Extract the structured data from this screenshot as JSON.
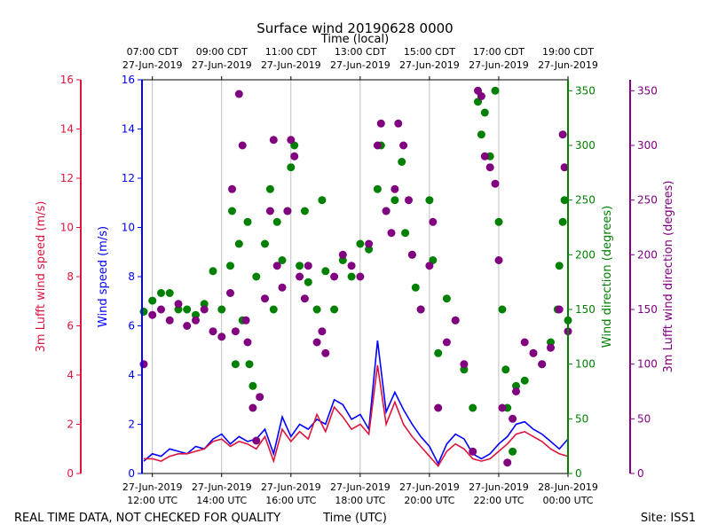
{
  "chart_data": {
    "type": "scatter",
    "title": "Surface wind 20190628 0000",
    "top_axis_label": "Time (local)",
    "xlabel": "Time (UTC)",
    "x_range_utc_hours": [
      11.7,
      24.0
    ],
    "bottom_ticks": [
      {
        "t": 12,
        "line1": "27-Jun-2019",
        "line2": "12:00 UTC"
      },
      {
        "t": 14,
        "line1": "27-Jun-2019",
        "line2": "14:00 UTC"
      },
      {
        "t": 16,
        "line1": "27-Jun-2019",
        "line2": "16:00 UTC"
      },
      {
        "t": 18,
        "line1": "27-Jun-2019",
        "line2": "18:00 UTC"
      },
      {
        "t": 20,
        "line1": "27-Jun-2019",
        "line2": "20:00 UTC"
      },
      {
        "t": 22,
        "line1": "27-Jun-2019",
        "line2": "22:00 UTC"
      },
      {
        "t": 24,
        "line1": "28-Jun-2019",
        "line2": "00:00 UTC"
      }
    ],
    "top_ticks": [
      {
        "t": 12,
        "line1": "07:00 CDT",
        "line2": "27-Jun-2019"
      },
      {
        "t": 14,
        "line1": "09:00 CDT",
        "line2": "27-Jun-2019"
      },
      {
        "t": 16,
        "line1": "11:00 CDT",
        "line2": "27-Jun-2019"
      },
      {
        "t": 18,
        "line1": "13:00 CDT",
        "line2": "27-Jun-2019"
      },
      {
        "t": 20,
        "line1": "15:00 CDT",
        "line2": "27-Jun-2019"
      },
      {
        "t": 22,
        "line1": "17:00 CDT",
        "line2": "27-Jun-2019"
      },
      {
        "t": 24,
        "line1": "19:00 CDT",
        "line2": "27-Jun-2019"
      }
    ],
    "y_axes": {
      "lufft_speed": {
        "label": "3m Lufft wind speed (m/s)",
        "range": [
          0,
          16
        ],
        "ticks": [
          0,
          2,
          4,
          6,
          8,
          10,
          12,
          14,
          16
        ],
        "color": "#dc143c"
      },
      "speed": {
        "label": "Wind speed (m/s)",
        "range": [
          0,
          16
        ],
        "ticks": [
          0,
          2,
          4,
          6,
          8,
          10,
          12,
          14,
          16
        ],
        "color": "#0000ff"
      },
      "direction": {
        "label": "Wind direction (degrees)",
        "range": [
          0,
          360
        ],
        "ticks": [
          0,
          50,
          100,
          150,
          200,
          250,
          300,
          350
        ],
        "color": "#008000"
      },
      "lufft_direction": {
        "label": "3m Lufft wind direction (degrees)",
        "range": [
          0,
          360
        ],
        "ticks": [
          0,
          50,
          100,
          150,
          200,
          250,
          300,
          350
        ],
        "color": "#800080"
      }
    },
    "series": [
      {
        "name": "Wind speed (m/s)",
        "axis": "speed",
        "style": "line",
        "color": "#0000ff",
        "points": [
          [
            11.75,
            0.5
          ],
          [
            12.0,
            0.8
          ],
          [
            12.25,
            0.7
          ],
          [
            12.5,
            1.0
          ],
          [
            12.75,
            0.9
          ],
          [
            13.0,
            0.8
          ],
          [
            13.25,
            1.1
          ],
          [
            13.5,
            1.0
          ],
          [
            13.75,
            1.4
          ],
          [
            14.0,
            1.6
          ],
          [
            14.25,
            1.2
          ],
          [
            14.5,
            1.5
          ],
          [
            14.75,
            1.3
          ],
          [
            15.0,
            1.4
          ],
          [
            15.25,
            1.8
          ],
          [
            15.5,
            0.8
          ],
          [
            15.75,
            2.3
          ],
          [
            16.0,
            1.5
          ],
          [
            16.25,
            2.0
          ],
          [
            16.5,
            1.8
          ],
          [
            16.75,
            2.2
          ],
          [
            17.0,
            2.0
          ],
          [
            17.25,
            3.0
          ],
          [
            17.5,
            2.8
          ],
          [
            17.75,
            2.2
          ],
          [
            18.0,
            2.4
          ],
          [
            18.25,
            1.8
          ],
          [
            18.5,
            5.4
          ],
          [
            18.75,
            2.5
          ],
          [
            19.0,
            3.3
          ],
          [
            19.25,
            2.6
          ],
          [
            19.5,
            2.0
          ],
          [
            19.75,
            1.5
          ],
          [
            20.0,
            1.1
          ],
          [
            20.25,
            0.4
          ],
          [
            20.5,
            1.2
          ],
          [
            20.75,
            1.6
          ],
          [
            21.0,
            1.4
          ],
          [
            21.25,
            0.8
          ],
          [
            21.5,
            0.6
          ],
          [
            21.75,
            0.8
          ],
          [
            22.0,
            1.2
          ],
          [
            22.25,
            1.5
          ],
          [
            22.5,
            2.0
          ],
          [
            22.75,
            2.1
          ],
          [
            23.0,
            1.8
          ],
          [
            23.25,
            1.6
          ],
          [
            23.5,
            1.3
          ],
          [
            23.75,
            1.0
          ],
          [
            24.0,
            1.4
          ]
        ]
      },
      {
        "name": "3m Lufft wind speed (m/s)",
        "axis": "lufft_speed",
        "style": "line",
        "color": "#dc143c",
        "points": [
          [
            11.75,
            0.6
          ],
          [
            12.0,
            0.6
          ],
          [
            12.25,
            0.5
          ],
          [
            12.5,
            0.7
          ],
          [
            12.75,
            0.8
          ],
          [
            13.0,
            0.8
          ],
          [
            13.25,
            0.9
          ],
          [
            13.5,
            1.0
          ],
          [
            13.75,
            1.3
          ],
          [
            14.0,
            1.4
          ],
          [
            14.25,
            1.1
          ],
          [
            14.5,
            1.3
          ],
          [
            14.75,
            1.2
          ],
          [
            15.0,
            1.0
          ],
          [
            15.25,
            1.5
          ],
          [
            15.5,
            0.5
          ],
          [
            15.75,
            1.8
          ],
          [
            16.0,
            1.3
          ],
          [
            16.25,
            1.7
          ],
          [
            16.5,
            1.4
          ],
          [
            16.75,
            2.4
          ],
          [
            17.0,
            1.7
          ],
          [
            17.25,
            2.7
          ],
          [
            17.5,
            2.3
          ],
          [
            17.75,
            1.8
          ],
          [
            18.0,
            2.0
          ],
          [
            18.25,
            1.6
          ],
          [
            18.5,
            4.4
          ],
          [
            18.75,
            2.0
          ],
          [
            19.0,
            2.9
          ],
          [
            19.25,
            2.0
          ],
          [
            19.5,
            1.5
          ],
          [
            19.75,
            1.1
          ],
          [
            20.0,
            0.7
          ],
          [
            20.25,
            0.3
          ],
          [
            20.5,
            0.9
          ],
          [
            20.75,
            1.2
          ],
          [
            21.0,
            1.0
          ],
          [
            21.25,
            0.6
          ],
          [
            21.5,
            0.5
          ],
          [
            21.75,
            0.6
          ],
          [
            22.0,
            0.9
          ],
          [
            22.25,
            1.2
          ],
          [
            22.5,
            1.6
          ],
          [
            22.75,
            1.7
          ],
          [
            23.0,
            1.5
          ],
          [
            23.25,
            1.3
          ],
          [
            23.5,
            1.0
          ],
          [
            23.75,
            0.8
          ],
          [
            24.0,
            0.7
          ]
        ]
      },
      {
        "name": "Wind direction (degrees)",
        "axis": "direction",
        "style": "scatter",
        "color": "#008000",
        "points": [
          [
            11.75,
            148
          ],
          [
            12.0,
            158
          ],
          [
            12.25,
            165
          ],
          [
            12.5,
            165
          ],
          [
            12.75,
            150
          ],
          [
            13.0,
            150
          ],
          [
            13.25,
            145
          ],
          [
            13.5,
            155
          ],
          [
            13.75,
            185
          ],
          [
            14.0,
            150
          ],
          [
            14.25,
            190
          ],
          [
            14.3,
            240
          ],
          [
            14.4,
            100
          ],
          [
            14.5,
            210
          ],
          [
            14.6,
            140
          ],
          [
            14.75,
            230
          ],
          [
            14.8,
            100
          ],
          [
            14.9,
            80
          ],
          [
            15.0,
            180
          ],
          [
            15.25,
            210
          ],
          [
            15.4,
            260
          ],
          [
            15.5,
            150
          ],
          [
            15.6,
            230
          ],
          [
            15.75,
            195
          ],
          [
            15.9,
            240
          ],
          [
            16.0,
            280
          ],
          [
            16.1,
            300
          ],
          [
            16.25,
            190
          ],
          [
            16.4,
            240
          ],
          [
            16.5,
            175
          ],
          [
            16.75,
            150
          ],
          [
            16.9,
            250
          ],
          [
            17.0,
            185
          ],
          [
            17.25,
            150
          ],
          [
            17.5,
            195
          ],
          [
            17.75,
            180
          ],
          [
            18.0,
            210
          ],
          [
            18.25,
            205
          ],
          [
            18.5,
            260
          ],
          [
            18.6,
            300
          ],
          [
            18.75,
            240
          ],
          [
            19.0,
            250
          ],
          [
            19.2,
            285
          ],
          [
            19.3,
            220
          ],
          [
            19.5,
            200
          ],
          [
            19.6,
            170
          ],
          [
            19.75,
            150
          ],
          [
            20.0,
            250
          ],
          [
            20.1,
            195
          ],
          [
            20.25,
            110
          ],
          [
            20.5,
            160
          ],
          [
            20.75,
            140
          ],
          [
            21.0,
            95
          ],
          [
            21.25,
            60
          ],
          [
            21.4,
            340
          ],
          [
            21.5,
            310
          ],
          [
            21.6,
            330
          ],
          [
            21.75,
            290
          ],
          [
            21.9,
            350
          ],
          [
            22.0,
            230
          ],
          [
            22.1,
            150
          ],
          [
            22.2,
            95
          ],
          [
            22.25,
            60
          ],
          [
            22.4,
            20
          ],
          [
            22.5,
            80
          ],
          [
            22.75,
            85
          ],
          [
            23.0,
            110
          ],
          [
            23.25,
            100
          ],
          [
            23.5,
            120
          ],
          [
            23.7,
            150
          ],
          [
            23.75,
            190
          ],
          [
            23.85,
            230
          ],
          [
            23.9,
            250
          ],
          [
            24.0,
            140
          ]
        ]
      },
      {
        "name": "3m Lufft wind direction (degrees)",
        "axis": "lufft_direction",
        "style": "scatter",
        "color": "#800080",
        "points": [
          [
            11.75,
            100
          ],
          [
            12.0,
            145
          ],
          [
            12.25,
            150
          ],
          [
            12.5,
            140
          ],
          [
            12.75,
            155
          ],
          [
            13.0,
            135
          ],
          [
            13.25,
            140
          ],
          [
            13.5,
            150
          ],
          [
            13.75,
            130
          ],
          [
            14.0,
            125
          ],
          [
            14.25,
            165
          ],
          [
            14.3,
            260
          ],
          [
            14.4,
            130
          ],
          [
            14.5,
            347
          ],
          [
            14.6,
            300
          ],
          [
            14.7,
            140
          ],
          [
            14.75,
            120
          ],
          [
            14.9,
            60
          ],
          [
            15.0,
            30
          ],
          [
            15.1,
            70
          ],
          [
            15.25,
            160
          ],
          [
            15.4,
            240
          ],
          [
            15.5,
            305
          ],
          [
            15.6,
            190
          ],
          [
            15.75,
            170
          ],
          [
            15.9,
            240
          ],
          [
            16.0,
            305
          ],
          [
            16.1,
            290
          ],
          [
            16.25,
            180
          ],
          [
            16.4,
            160
          ],
          [
            16.5,
            190
          ],
          [
            16.75,
            120
          ],
          [
            16.9,
            130
          ],
          [
            17.0,
            110
          ],
          [
            17.25,
            180
          ],
          [
            17.5,
            200
          ],
          [
            17.75,
            190
          ],
          [
            18.0,
            180
          ],
          [
            18.25,
            210
          ],
          [
            18.5,
            300
          ],
          [
            18.6,
            320
          ],
          [
            18.75,
            240
          ],
          [
            18.9,
            220
          ],
          [
            19.0,
            260
          ],
          [
            19.1,
            320
          ],
          [
            19.25,
            300
          ],
          [
            19.4,
            250
          ],
          [
            19.5,
            200
          ],
          [
            19.75,
            150
          ],
          [
            20.0,
            190
          ],
          [
            20.1,
            230
          ],
          [
            20.25,
            60
          ],
          [
            20.5,
            120
          ],
          [
            20.75,
            140
          ],
          [
            21.0,
            100
          ],
          [
            21.25,
            20
          ],
          [
            21.4,
            350
          ],
          [
            21.5,
            345
          ],
          [
            21.6,
            290
          ],
          [
            21.75,
            280
          ],
          [
            21.9,
            265
          ],
          [
            22.0,
            195
          ],
          [
            22.1,
            60
          ],
          [
            22.25,
            10
          ],
          [
            22.4,
            50
          ],
          [
            22.5,
            75
          ],
          [
            22.75,
            120
          ],
          [
            23.0,
            110
          ],
          [
            23.25,
            100
          ],
          [
            23.5,
            115
          ],
          [
            23.75,
            150
          ],
          [
            23.85,
            310
          ],
          [
            23.9,
            280
          ],
          [
            24.0,
            130
          ]
        ]
      }
    ],
    "gridlines": "vertical"
  },
  "footer": {
    "disclaimer": "REAL TIME DATA, NOT CHECKED FOR QUALITY",
    "site": "Site: ISS1"
  }
}
